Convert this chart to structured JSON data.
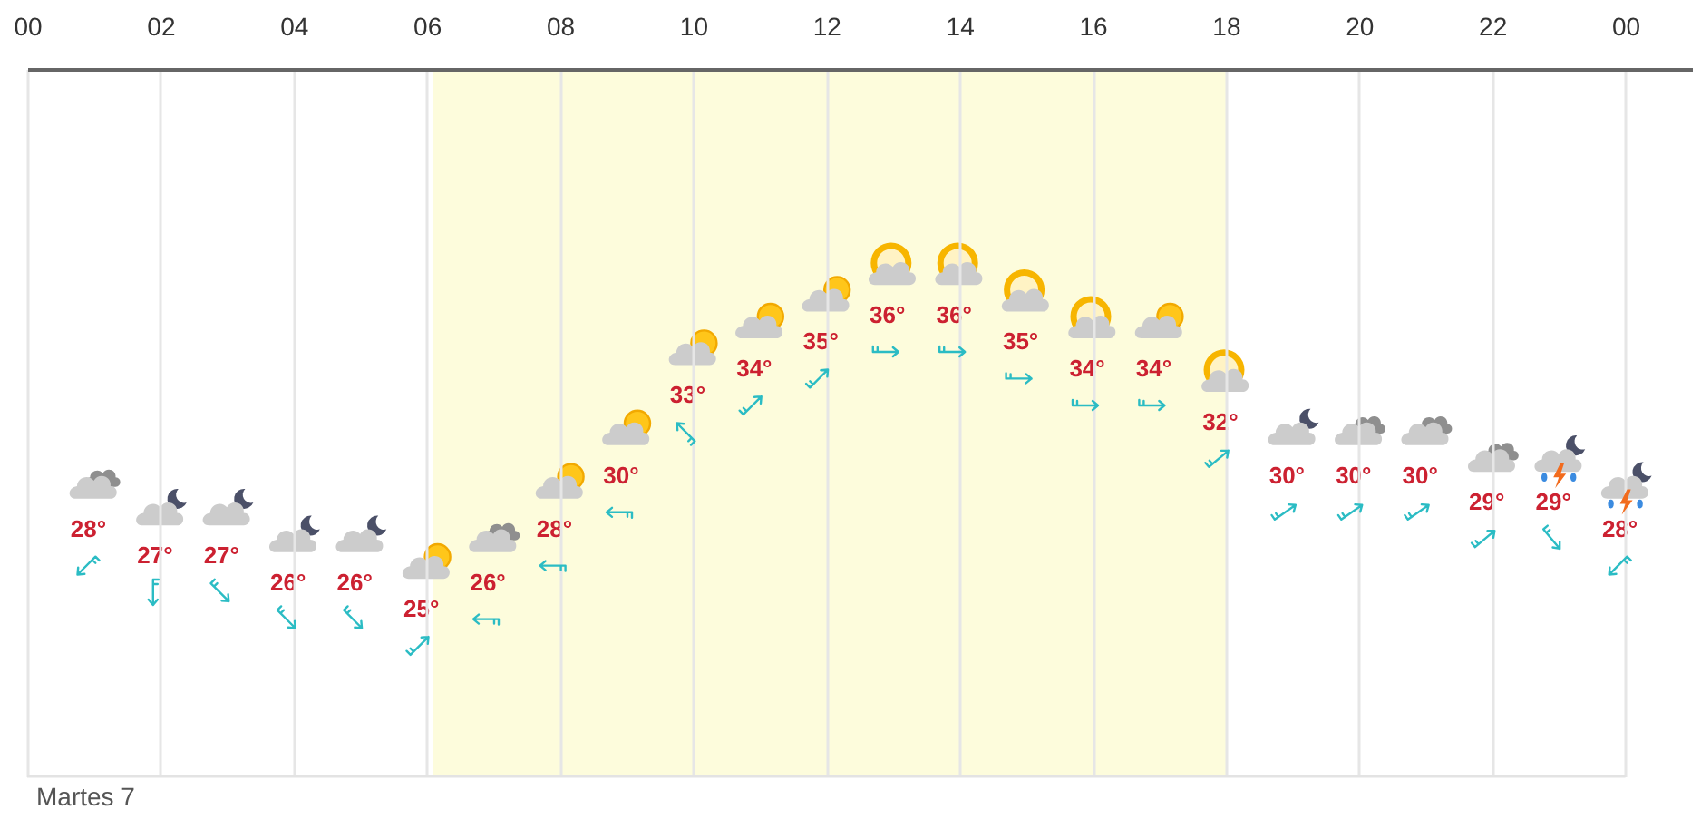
{
  "chart_data": {
    "type": "scatter",
    "x": [
      1,
      2,
      3,
      4,
      5,
      6,
      7,
      8,
      9,
      10,
      11,
      12,
      13,
      14,
      15,
      16,
      17,
      18,
      19,
      20,
      21,
      22,
      23,
      24
    ],
    "values": [
      28,
      27,
      27,
      26,
      26,
      25,
      26,
      28,
      30,
      33,
      34,
      35,
      36,
      36,
      35,
      34,
      34,
      32,
      30,
      30,
      30,
      29,
      29,
      28
    ],
    "value_labels": [
      "28°",
      "27°",
      "27°",
      "26°",
      "26°",
      "25°",
      "26°",
      "28°",
      "30°",
      "33°",
      "34°",
      "35°",
      "36°",
      "36°",
      "35°",
      "34°",
      "34°",
      "32°",
      "30°",
      "30°",
      "30°",
      "29°",
      "29°",
      "28°"
    ],
    "color": "#cccccc",
    "xlim": [
      0,
      25
    ],
    "xticks": [
      {
        "value": 0,
        "label": "00"
      },
      {
        "value": 2,
        "label": "02"
      },
      {
        "value": 4,
        "label": "04"
      },
      {
        "value": 6,
        "label": "06"
      },
      {
        "value": 8,
        "label": "08"
      },
      10,
      12,
      14,
      16,
      18,
      20,
      22,
      {
        "value": 24,
        "label": "00"
      }
    ],
    "grid": "x",
    "tick_labels": "x",
    "bands": [
      {
        "axis": "x",
        "from": 6.1,
        "to": 18,
        "color": "#fdfcdc"
      }
    ],
    "annotations": [
      "Martes 7"
    ]
  }
}
